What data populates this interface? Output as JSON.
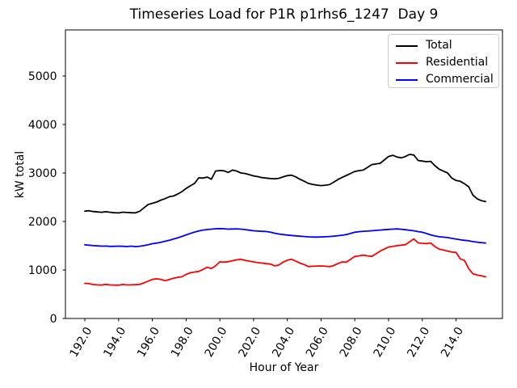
{
  "figure": {
    "background": "#ffffff"
  },
  "chart_data": {
    "type": "line",
    "title": "Timeseries Load for P1R p1rhs6_1247  Day 9",
    "xlabel": "Hour of Year",
    "ylabel": "kW total",
    "grid": false,
    "legend_position": "upper right",
    "axis_color": "#000000",
    "xlim": [
      190.85,
      216.75
    ],
    "ylim": [
      0,
      5950
    ],
    "xticks": [
      192,
      194,
      196,
      198,
      200,
      202,
      204,
      206,
      208,
      210,
      212,
      214
    ],
    "xtick_labels": [
      "192.0",
      "194.0",
      "196.0",
      "198.0",
      "200.0",
      "202.0",
      "204.0",
      "206.0",
      "208.0",
      "210.0",
      "212.0",
      "214.0"
    ],
    "yticks": [
      0,
      1000,
      2000,
      3000,
      4000,
      5000
    ],
    "ytick_labels": [
      "0",
      "1000",
      "2000",
      "3000",
      "4000",
      "5000"
    ],
    "x": [
      192.0,
      192.25,
      192.5,
      192.75,
      193.0,
      193.25,
      193.5,
      193.75,
      194.0,
      194.25,
      194.5,
      194.75,
      195.0,
      195.25,
      195.5,
      195.75,
      196.0,
      196.25,
      196.5,
      196.75,
      197.0,
      197.25,
      197.5,
      197.75,
      198.0,
      198.25,
      198.5,
      198.75,
      199.0,
      199.25,
      199.5,
      199.75,
      200.0,
      200.25,
      200.5,
      200.75,
      201.0,
      201.25,
      201.5,
      201.75,
      202.0,
      202.25,
      202.5,
      202.75,
      203.0,
      203.25,
      203.5,
      203.75,
      204.0,
      204.25,
      204.5,
      204.75,
      205.0,
      205.25,
      205.5,
      205.75,
      206.0,
      206.25,
      206.5,
      206.75,
      207.0,
      207.25,
      207.5,
      207.75,
      208.0,
      208.25,
      208.5,
      208.75,
      209.0,
      209.25,
      209.5,
      209.75,
      210.0,
      210.25,
      210.5,
      210.75,
      211.0,
      211.25,
      211.5,
      211.75,
      212.0,
      212.25,
      212.5,
      212.75,
      213.0,
      213.25,
      213.5,
      213.75,
      214.0,
      214.25,
      214.5,
      214.75,
      215.0,
      215.25,
      215.5,
      215.75
    ],
    "series": [
      {
        "name": "Total",
        "color": "#000000",
        "values": [
          2215,
          2222,
          2205,
          2196,
          2190,
          2202,
          2190,
          2180,
          2176,
          2192,
          2185,
          2180,
          2178,
          2210,
          2280,
          2350,
          2375,
          2400,
          2440,
          2470,
          2510,
          2525,
          2565,
          2615,
          2680,
          2735,
          2785,
          2900,
          2895,
          2915,
          2872,
          3040,
          3050,
          3045,
          3012,
          3060,
          3040,
          3000,
          2990,
          2965,
          2940,
          2925,
          2905,
          2895,
          2885,
          2880,
          2890,
          2920,
          2945,
          2955,
          2920,
          2870,
          2830,
          2785,
          2765,
          2750,
          2740,
          2748,
          2760,
          2810,
          2865,
          2910,
          2950,
          2990,
          3032,
          3048,
          3060,
          3115,
          3172,
          3185,
          3200,
          3270,
          3340,
          3365,
          3330,
          3312,
          3340,
          3383,
          3370,
          3258,
          3245,
          3233,
          3240,
          3150,
          3078,
          3038,
          3000,
          2895,
          2845,
          2828,
          2778,
          2715,
          2545,
          2468,
          2428,
          2410
        ]
      },
      {
        "name": "Residential",
        "color": "#ff0000",
        "values": [
          725,
          718,
          700,
          694,
          690,
          703,
          692,
          688,
          686,
          702,
          691,
          693,
          696,
          702,
          733,
          770,
          805,
          818,
          806,
          780,
          802,
          830,
          848,
          860,
          908,
          942,
          958,
          970,
          1012,
          1055,
          1032,
          1085,
          1168,
          1162,
          1172,
          1192,
          1208,
          1222,
          1198,
          1182,
          1167,
          1152,
          1142,
          1130,
          1122,
          1085,
          1102,
          1162,
          1202,
          1222,
          1182,
          1142,
          1112,
          1070,
          1076,
          1081,
          1083,
          1076,
          1068,
          1092,
          1132,
          1167,
          1162,
          1222,
          1278,
          1292,
          1305,
          1292,
          1278,
          1332,
          1390,
          1432,
          1472,
          1487,
          1500,
          1512,
          1522,
          1582,
          1640,
          1558,
          1550,
          1545,
          1557,
          1482,
          1432,
          1410,
          1390,
          1368,
          1362,
          1228,
          1196,
          1028,
          922,
          896,
          880,
          858
        ]
      },
      {
        "name": "Commercial",
        "color": "#0000ff",
        "values": [
          1518,
          1512,
          1502,
          1496,
          1492,
          1494,
          1486,
          1489,
          1492,
          1488,
          1484,
          1491,
          1482,
          1490,
          1502,
          1520,
          1542,
          1555,
          1572,
          1592,
          1614,
          1637,
          1662,
          1692,
          1724,
          1754,
          1782,
          1804,
          1824,
          1834,
          1842,
          1850,
          1854,
          1850,
          1842,
          1845,
          1848,
          1842,
          1834,
          1820,
          1808,
          1802,
          1797,
          1793,
          1778,
          1758,
          1742,
          1730,
          1720,
          1712,
          1704,
          1696,
          1690,
          1684,
          1680,
          1678,
          1681,
          1685,
          1690,
          1697,
          1707,
          1717,
          1730,
          1754,
          1779,
          1790,
          1798,
          1802,
          1808,
          1816,
          1824,
          1830,
          1836,
          1842,
          1846,
          1840,
          1830,
          1818,
          1808,
          1792,
          1779,
          1752,
          1724,
          1702,
          1685,
          1676,
          1668,
          1652,
          1637,
          1624,
          1612,
          1602,
          1585,
          1574,
          1564,
          1556
        ]
      }
    ]
  }
}
